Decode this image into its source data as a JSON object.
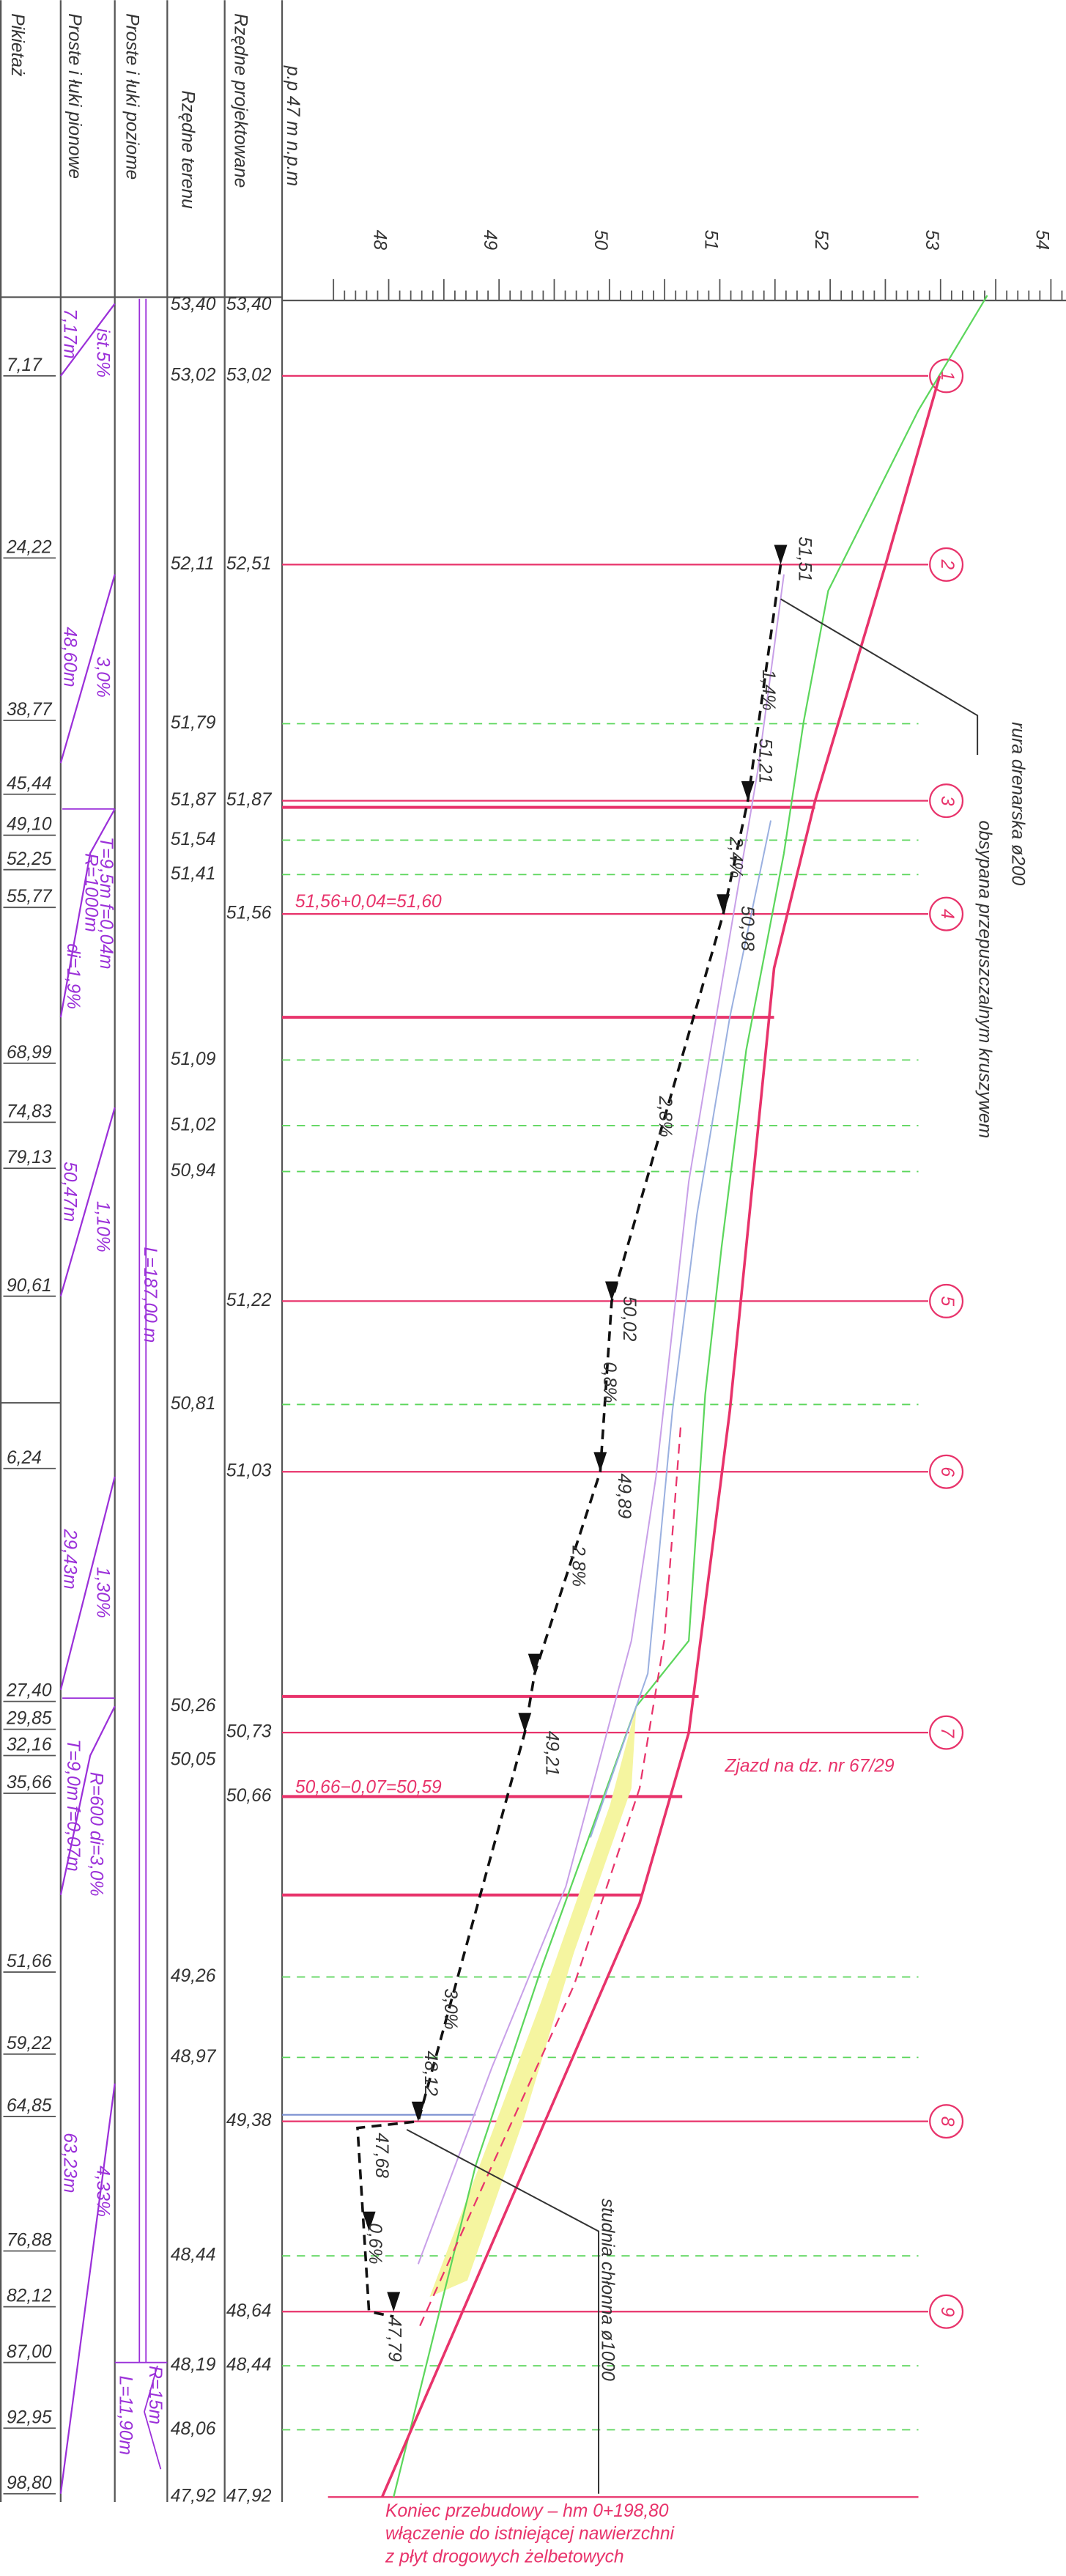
{
  "headers": {
    "station": "Pikietaż",
    "vertical": "Proste i łuki pionowe",
    "horizontal": "Proste i łuki poziome",
    "terrain": "Rzędne terenu",
    "design": "Rzędne projektowane",
    "datum": "p.p 47 m n.p.m"
  },
  "axis_labels": [
    "48",
    "49",
    "50",
    "51",
    "52",
    "53",
    "54"
  ],
  "stations": [
    "7,17",
    "24,22",
    "38,77",
    "45,44",
    "49,10",
    "52,25",
    "55,77",
    "68,99",
    "74,83",
    "79,13",
    "90,61",
    "6,24",
    "27,40",
    "29,85",
    "32,16",
    "35,66",
    "51,66",
    "59,22",
    "64,85",
    "76,88",
    "82,12",
    "87,00",
    "92,95",
    "98,80"
  ],
  "terrain": [
    "53,40",
    "53,02",
    "52,11",
    "51,79",
    "51,87",
    "51,54",
    "51,41",
    "51,09",
    "51,02",
    "50,94",
    "50,81",
    "50,26",
    "50,05",
    "49,26",
    "48,97",
    "48,44",
    "48,19",
    "48,06",
    "47,92"
  ],
  "design": [
    "53,40",
    "53,02",
    "52,51",
    "51,87",
    "51,56",
    "51,22",
    "51,03",
    "50,73",
    "50,66",
    "49,38",
    "48,64",
    "48,44",
    "47,92"
  ],
  "vertical_curves": [
    "7,17m",
    "ist.5%",
    "48,60m",
    "3,0%",
    "T=9,5m f=0,04m",
    "R=1000m",
    "di=1,9%",
    "50,47m",
    "1,10%",
    "29,43m",
    "1,30%",
    "T=9,0m f=0,07m",
    "R=600 di=3,0%",
    "63,23m",
    "4,33%"
  ],
  "horizontal_curves": [
    "L=187,00 m",
    "R=15m",
    "L=11,90m"
  ],
  "profile_labels": [
    "51,51",
    "1,4%",
    "51,21",
    "2,4%",
    "50,98",
    "2,8%",
    "50,02",
    "0,8%",
    "49,89",
    "2,8%",
    "49,21",
    "3,0%",
    "48,12",
    "47,68",
    "0,6%",
    "47,79"
  ],
  "markers": [
    "1",
    "2",
    "3",
    "4",
    "5",
    "6",
    "7",
    "8",
    "9"
  ],
  "notes": {
    "level_1": "51,56+0,04=51,60",
    "level_2": "50,66−0,07=50,59",
    "driveway": "Zjazd na dz. nr 67/29",
    "drain_1": "rura drenarska ø200",
    "drain_2": "obsypana przepuszczalnym kruszywem",
    "well": "studnia chłonna ø1000",
    "end_1": "Koniec przebudowy – hm 0+198,80",
    "end_2": "włączenie do istniejącej nawierzchni",
    "end_3": "z płyt drogowych żelbetowych"
  }
}
